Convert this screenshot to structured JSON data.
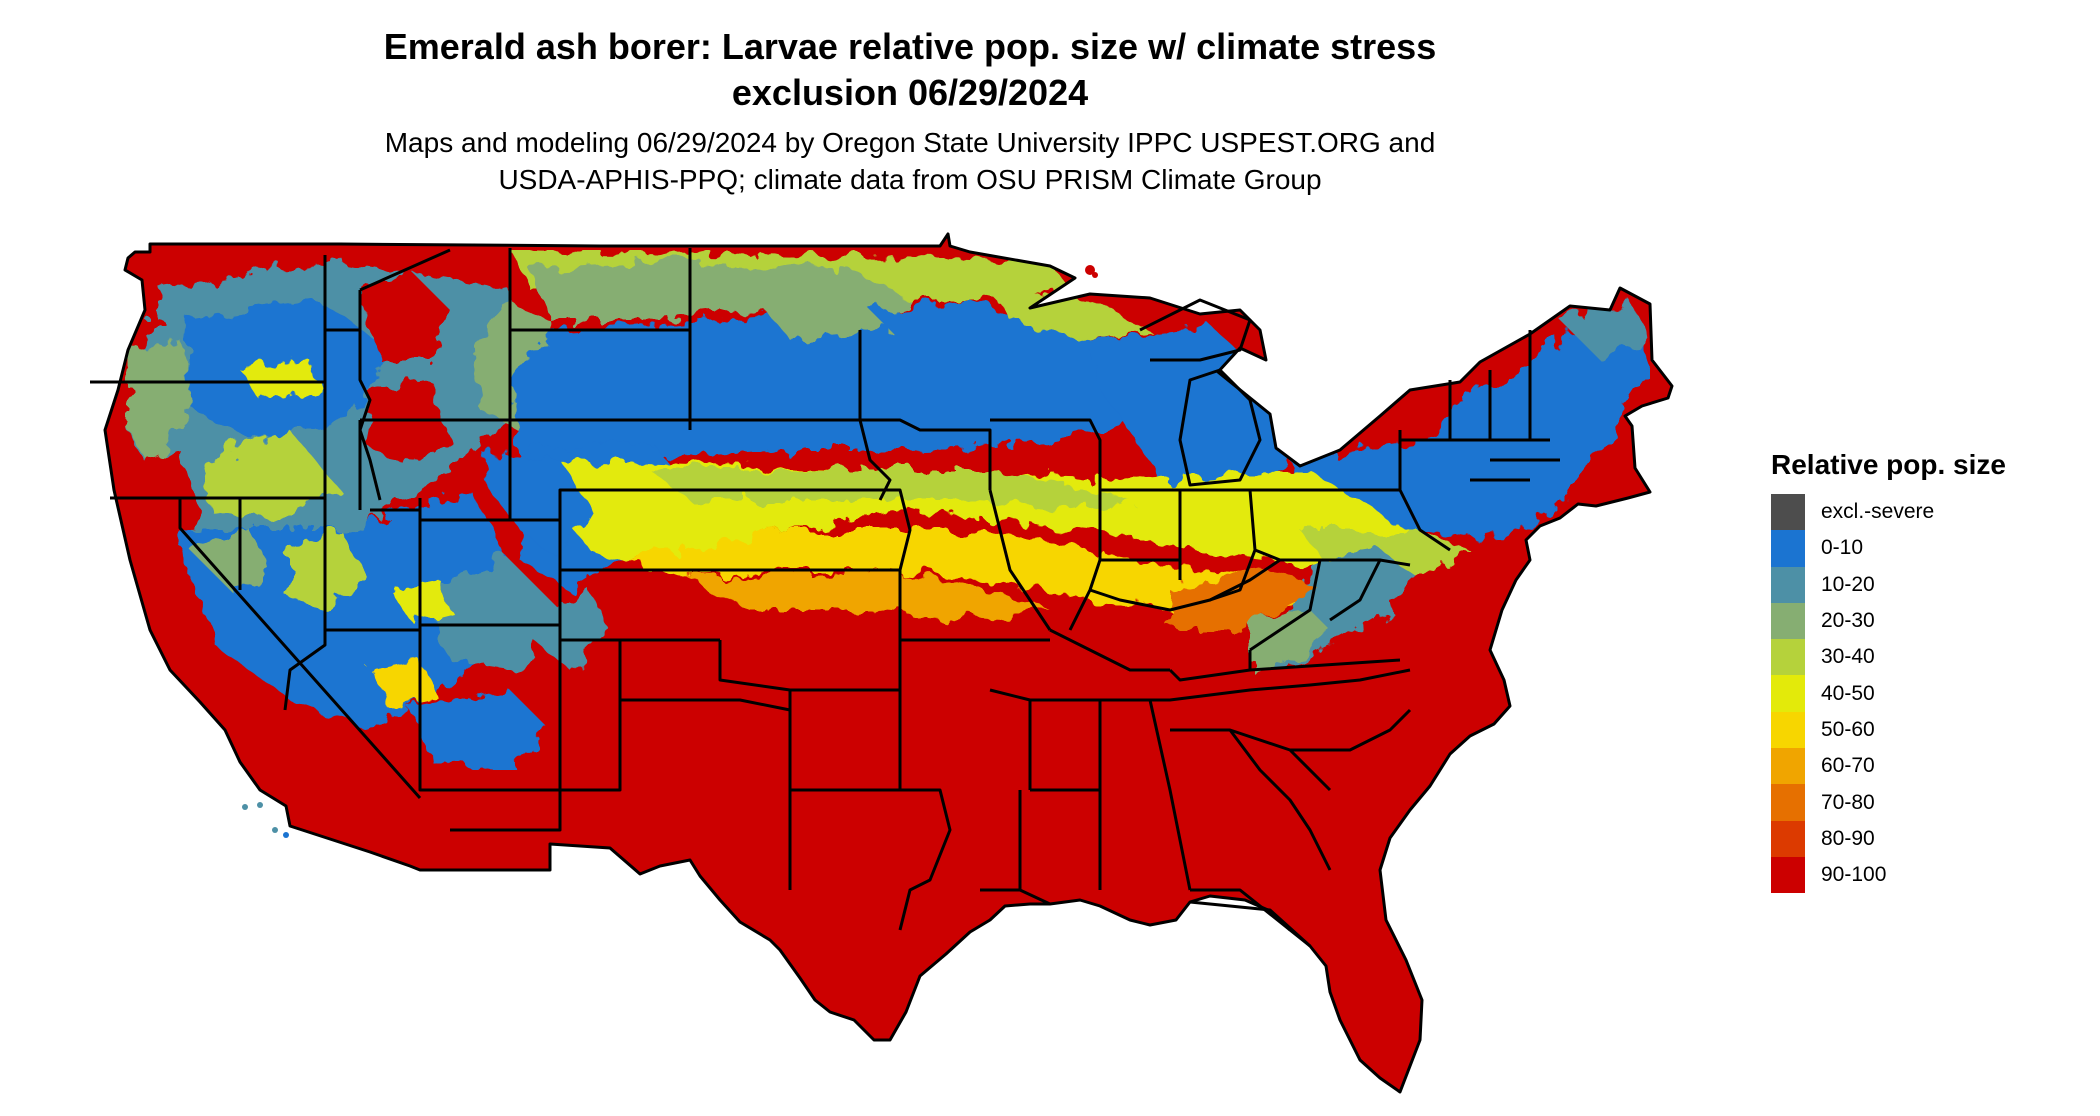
{
  "title_line1": "Emerald ash borer: Larvae relative pop. size w/ climate stress",
  "title_line2": "exclusion 06/29/2024",
  "subtitle_line1": "Maps and modeling 06/29/2024 by Oregon State University IPPC USPEST.ORG and",
  "subtitle_line2": "USDA-APHIS-PPQ; climate data from OSU PRISM Climate Group",
  "legend": {
    "title": "Relative pop. size",
    "items": [
      {
        "label": "excl.-severe",
        "color": "#4d4d4d"
      },
      {
        "label": "0-10",
        "color": "#1b74d1"
      },
      {
        "label": "10-20",
        "color": "#4d90a6"
      },
      {
        "label": "20-30",
        "color": "#86ae72"
      },
      {
        "label": "30-40",
        "color": "#b5d23b"
      },
      {
        "label": "40-50",
        "color": "#e3ea0a"
      },
      {
        "label": "50-60",
        "color": "#f7d600"
      },
      {
        "label": "60-70",
        "color": "#f0a500"
      },
      {
        "label": "70-80",
        "color": "#e67000"
      },
      {
        "label": "80-90",
        "color": "#dc3a00"
      },
      {
        "label": "90-100",
        "color": "#cc0000"
      }
    ]
  }
}
